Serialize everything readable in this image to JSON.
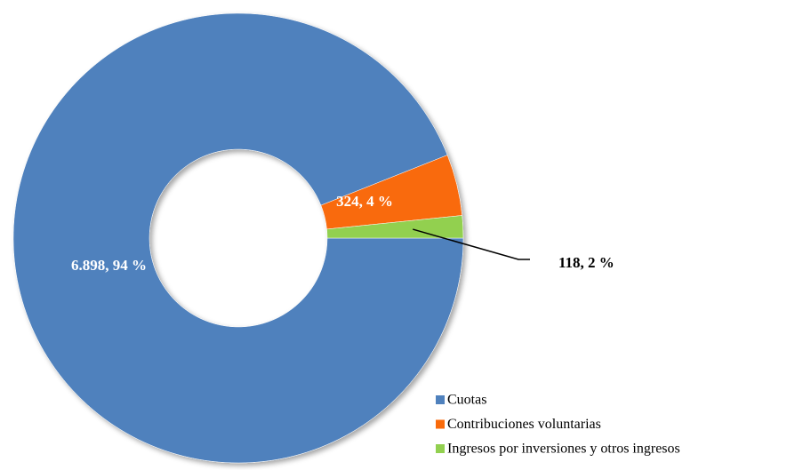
{
  "chart_data": {
    "type": "donut",
    "categories": [
      "Cuotas",
      "Contribuciones voluntarias",
      "Ingresos por inversiones y otros ingresos"
    ],
    "values": [
      6898,
      324,
      118
    ],
    "value_labels": [
      "6.898, 94 %",
      "324, 4 %",
      "118, 2 %"
    ],
    "colors": [
      "#4f81bd",
      "#f96a0a",
      "#92d050"
    ],
    "legend": "bottom-right"
  }
}
